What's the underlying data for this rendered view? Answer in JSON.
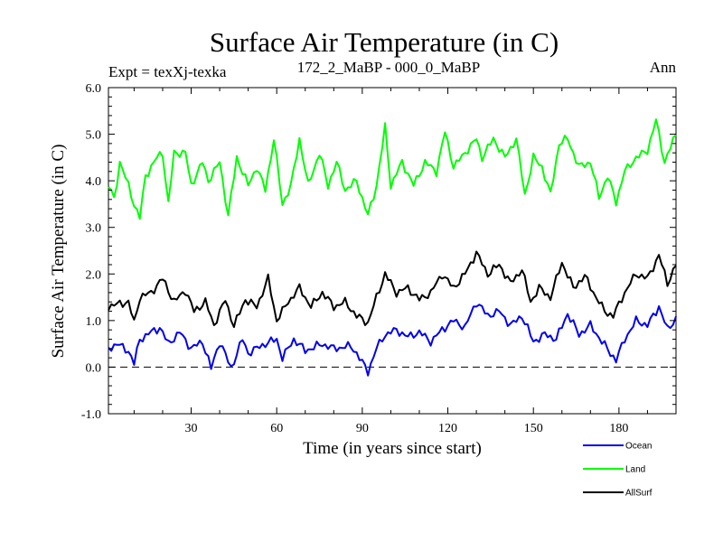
{
  "chart_data": {
    "type": "line",
    "title": "Surface Air Temperature (in C)",
    "subtitle_left": "Expt = texXj-texka",
    "subtitle_center": "172_2_MaBP - 000_0_MaBP",
    "subtitle_right": "Ann",
    "xlabel": "Time (in years since start)",
    "ylabel": "Surface Air Temperature (in C)",
    "xlim": [
      1,
      200
    ],
    "ylim": [
      -1.0,
      6.0
    ],
    "x_ticks": [
      30,
      60,
      90,
      120,
      150,
      180
    ],
    "x_tick_labels": [
      "30",
      "60",
      "90",
      "120",
      "150",
      "180"
    ],
    "y_ticks": [
      -1.0,
      0.0,
      1.0,
      2.0,
      3.0,
      4.0,
      5.0,
      6.0
    ],
    "y_tick_labels": [
      "-1.0",
      "0.0",
      "1.0",
      "2.0",
      "3.0",
      "4.0",
      "5.0",
      "6.0"
    ],
    "reference_line": {
      "y": 0.0,
      "style": "dashed"
    },
    "anchors": {
      "Ocean": [
        [
          1,
          0.4
        ],
        [
          4,
          0.5
        ],
        [
          8,
          0.35
        ],
        [
          10,
          0.08
        ],
        [
          12,
          0.6
        ],
        [
          16,
          0.75
        ],
        [
          19,
          0.85
        ],
        [
          22,
          0.5
        ],
        [
          26,
          0.75
        ],
        [
          30,
          0.4
        ],
        [
          34,
          0.55
        ],
        [
          37,
          -0.03
        ],
        [
          40,
          0.55
        ],
        [
          44,
          -0.02
        ],
        [
          48,
          0.6
        ],
        [
          50,
          0.3
        ],
        [
          56,
          0.5
        ],
        [
          60,
          0.6
        ],
        [
          62,
          0.2
        ],
        [
          66,
          0.6
        ],
        [
          70,
          0.35
        ],
        [
          76,
          0.5
        ],
        [
          80,
          0.4
        ],
        [
          86,
          0.45
        ],
        [
          88,
          0.3
        ],
        [
          90,
          0.1
        ],
        [
          92,
          -0.1
        ],
        [
          95,
          0.4
        ],
        [
          98,
          0.7
        ],
        [
          102,
          0.8
        ],
        [
          106,
          0.65
        ],
        [
          110,
          0.75
        ],
        [
          114,
          0.55
        ],
        [
          118,
          0.8
        ],
        [
          122,
          1.0
        ],
        [
          126,
          0.85
        ],
        [
          130,
          1.4
        ],
        [
          134,
          1.1
        ],
        [
          138,
          1.2
        ],
        [
          142,
          0.9
        ],
        [
          146,
          1.1
        ],
        [
          150,
          0.55
        ],
        [
          154,
          0.7
        ],
        [
          158,
          0.6
        ],
        [
          162,
          1.15
        ],
        [
          166,
          0.7
        ],
        [
          170,
          0.9
        ],
        [
          174,
          0.55
        ],
        [
          177,
          0.3
        ],
        [
          179,
          0.15
        ],
        [
          182,
          0.6
        ],
        [
          186,
          1.0
        ],
        [
          190,
          0.9
        ],
        [
          194,
          1.3
        ],
        [
          197,
          0.8
        ],
        [
          200,
          1.05
        ]
      ],
      "Land": [
        [
          1,
          3.9
        ],
        [
          3,
          3.6
        ],
        [
          5,
          4.4
        ],
        [
          8,
          3.9
        ],
        [
          10,
          3.5
        ],
        [
          12,
          3.2
        ],
        [
          14,
          4.1
        ],
        [
          18,
          4.5
        ],
        [
          20,
          4.6
        ],
        [
          22,
          3.5
        ],
        [
          24,
          4.6
        ],
        [
          28,
          4.6
        ],
        [
          30,
          3.9
        ],
        [
          34,
          4.4
        ],
        [
          36,
          4.0
        ],
        [
          40,
          4.4
        ],
        [
          43,
          3.25
        ],
        [
          46,
          4.5
        ],
        [
          50,
          3.9
        ],
        [
          53,
          4.3
        ],
        [
          56,
          3.8
        ],
        [
          59,
          4.9
        ],
        [
          62,
          3.5
        ],
        [
          65,
          3.9
        ],
        [
          68,
          4.9
        ],
        [
          71,
          3.9
        ],
        [
          75,
          4.6
        ],
        [
          78,
          3.9
        ],
        [
          81,
          4.4
        ],
        [
          84,
          3.8
        ],
        [
          88,
          4.0
        ],
        [
          92,
          3.25
        ],
        [
          95,
          3.9
        ],
        [
          98,
          5.15
        ],
        [
          100,
          3.9
        ],
        [
          104,
          4.4
        ],
        [
          108,
          3.9
        ],
        [
          112,
          4.4
        ],
        [
          116,
          4.2
        ],
        [
          119,
          5.05
        ],
        [
          122,
          4.3
        ],
        [
          126,
          4.6
        ],
        [
          130,
          4.9
        ],
        [
          132,
          4.5
        ],
        [
          136,
          4.9
        ],
        [
          140,
          4.5
        ],
        [
          144,
          4.9
        ],
        [
          147,
          3.7
        ],
        [
          150,
          4.5
        ],
        [
          153,
          4.3
        ],
        [
          156,
          3.7
        ],
        [
          159,
          4.8
        ],
        [
          162,
          4.9
        ],
        [
          166,
          4.3
        ],
        [
          170,
          4.4
        ],
        [
          173,
          3.65
        ],
        [
          176,
          4.1
        ],
        [
          179,
          3.55
        ],
        [
          182,
          4.2
        ],
        [
          186,
          4.5
        ],
        [
          190,
          4.65
        ],
        [
          193,
          5.3
        ],
        [
          196,
          4.4
        ],
        [
          200,
          5.0
        ]
      ],
      "AllSurf": [
        [
          1,
          1.3
        ],
        [
          4,
          1.35
        ],
        [
          8,
          1.4
        ],
        [
          10,
          0.95
        ],
        [
          12,
          1.5
        ],
        [
          16,
          1.6
        ],
        [
          20,
          1.9
        ],
        [
          24,
          1.4
        ],
        [
          28,
          1.65
        ],
        [
          31,
          1.2
        ],
        [
          35,
          1.4
        ],
        [
          38,
          0.9
        ],
        [
          42,
          1.45
        ],
        [
          45,
          0.88
        ],
        [
          49,
          1.45
        ],
        [
          53,
          1.3
        ],
        [
          57,
          1.9
        ],
        [
          60,
          1.0
        ],
        [
          64,
          1.4
        ],
        [
          68,
          1.7
        ],
        [
          72,
          1.3
        ],
        [
          76,
          1.6
        ],
        [
          80,
          1.3
        ],
        [
          84,
          1.4
        ],
        [
          88,
          1.1
        ],
        [
          92,
          0.95
        ],
        [
          95,
          1.5
        ],
        [
          98,
          2.0
        ],
        [
          102,
          1.6
        ],
        [
          106,
          1.7
        ],
        [
          110,
          1.45
        ],
        [
          114,
          1.6
        ],
        [
          118,
          2.0
        ],
        [
          122,
          1.7
        ],
        [
          126,
          2.0
        ],
        [
          130,
          2.45
        ],
        [
          134,
          2.0
        ],
        [
          138,
          2.2
        ],
        [
          142,
          1.8
        ],
        [
          146,
          2.1
        ],
        [
          149,
          1.4
        ],
        [
          152,
          1.7
        ],
        [
          156,
          1.5
        ],
        [
          160,
          2.25
        ],
        [
          164,
          1.7
        ],
        [
          168,
          1.95
        ],
        [
          172,
          1.5
        ],
        [
          175,
          1.2
        ],
        [
          178,
          1.1
        ],
        [
          182,
          1.6
        ],
        [
          186,
          2.0
        ],
        [
          190,
          1.9
        ],
        [
          194,
          2.4
        ],
        [
          197,
          1.8
        ],
        [
          200,
          2.2
        ]
      ]
    },
    "series": [
      {
        "name": "Ocean",
        "color": "#0000ee",
        "legend_label": "Ocean"
      },
      {
        "name": "Land",
        "color": "#00ff00",
        "legend_label": "Land"
      },
      {
        "name": "AllSurf",
        "color": "#000000",
        "legend_label": "AllSurf"
      }
    ]
  }
}
